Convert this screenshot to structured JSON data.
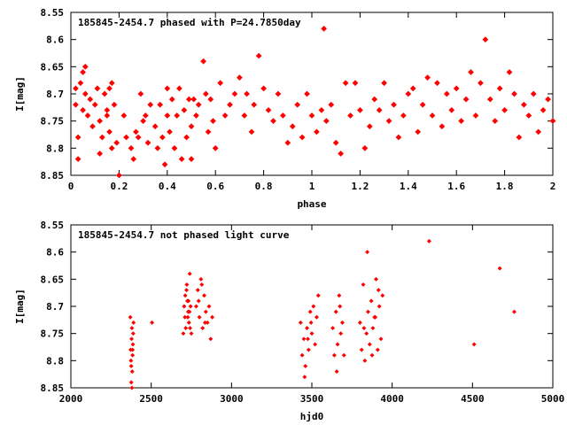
{
  "chart_data": [
    {
      "type": "scatter",
      "title": "185845-2454.7 phased with P=24.7850day",
      "xlabel": "phase",
      "ylabel": "I[mag]",
      "xlim": [
        0,
        2
      ],
      "ylim": [
        8.55,
        8.85
      ],
      "y_inverted": true,
      "xticks": [
        "0",
        "0.2",
        "0.4",
        "0.6",
        "0.8",
        "1",
        "1.2",
        "1.4",
        "1.6",
        "1.8",
        "2"
      ],
      "yticks": [
        "8.55",
        "8.6",
        "8.65",
        "8.7",
        "8.75",
        "8.8",
        "8.85"
      ],
      "grid": false,
      "marker_color": "#ff0000",
      "series": [
        {
          "x": [
            0.02,
            0.02,
            0.03,
            0.03,
            0.04,
            0.05,
            0.05,
            0.06,
            0.06,
            0.07,
            0.08,
            0.09,
            0.1,
            0.11,
            0.12,
            0.12,
            0.13,
            0.14,
            0.15,
            0.15,
            0.16,
            0.16,
            0.17,
            0.17,
            0.18,
            0.19,
            0.2,
            0.22,
            0.23,
            0.25,
            0.26,
            0.27,
            0.28,
            0.29,
            0.3,
            0.31,
            0.32,
            0.33,
            0.35,
            0.36,
            0.37,
            0.38,
            0.39,
            0.4,
            0.4,
            0.41,
            0.42,
            0.43,
            0.44,
            0.45,
            0.46,
            0.47,
            0.48,
            0.49,
            0.5,
            0.5,
            0.51,
            0.52,
            0.53,
            0.55,
            0.56,
            0.57,
            0.58,
            0.59,
            0.6,
            0.62,
            0.64,
            0.66,
            0.68,
            0.7,
            0.72,
            0.73,
            0.75,
            0.76,
            0.78,
            0.8,
            0.82,
            0.84,
            0.86,
            0.88,
            0.9,
            0.92,
            0.94,
            0.96,
            0.98,
            1.0,
            1.02,
            1.04,
            1.05,
            1.06,
            1.08,
            1.1,
            1.12,
            1.14,
            1.16,
            1.18,
            1.2,
            1.22,
            1.24,
            1.26,
            1.28,
            1.3,
            1.32,
            1.34,
            1.36,
            1.38,
            1.4,
            1.42,
            1.44,
            1.46,
            1.48,
            1.5,
            1.52,
            1.54,
            1.56,
            1.58,
            1.6,
            1.62,
            1.64,
            1.66,
            1.68,
            1.7,
            1.72,
            1.74,
            1.76,
            1.78,
            1.8,
            1.82,
            1.84,
            1.86,
            1.88,
            1.9,
            1.92,
            1.94,
            1.96,
            1.98,
            2.0
          ],
          "y": [
            8.72,
            8.69,
            8.78,
            8.82,
            8.68,
            8.66,
            8.73,
            8.65,
            8.7,
            8.74,
            8.71,
            8.76,
            8.72,
            8.69,
            8.81,
            8.75,
            8.78,
            8.7,
            8.74,
            8.73,
            8.77,
            8.69,
            8.8,
            8.68,
            8.72,
            8.79,
            8.85,
            8.74,
            8.78,
            8.8,
            8.82,
            8.77,
            8.78,
            8.7,
            8.75,
            8.74,
            8.79,
            8.72,
            8.76,
            8.8,
            8.72,
            8.78,
            8.83,
            8.74,
            8.69,
            8.77,
            8.71,
            8.8,
            8.74,
            8.69,
            8.82,
            8.73,
            8.78,
            8.71,
            8.82,
            8.76,
            8.71,
            8.74,
            8.72,
            8.64,
            8.7,
            8.77,
            8.71,
            8.75,
            8.8,
            8.68,
            8.74,
            8.72,
            8.7,
            8.67,
            8.74,
            8.7,
            8.77,
            8.72,
            8.63,
            8.69,
            8.73,
            8.75,
            8.7,
            8.74,
            8.79,
            8.76,
            8.72,
            8.78,
            8.7,
            8.74,
            8.77,
            8.73,
            8.58,
            8.75,
            8.72,
            8.79,
            8.81,
            8.68,
            8.74,
            8.68,
            8.73,
            8.8,
            8.76,
            8.71,
            8.73,
            8.68,
            8.75,
            8.72,
            8.78,
            8.74,
            8.7,
            8.69,
            8.77,
            8.72,
            8.67,
            8.74,
            8.68,
            8.76,
            8.7,
            8.73,
            8.69,
            8.75,
            8.71,
            8.66,
            8.74,
            8.68,
            8.6,
            8.71,
            8.75,
            8.69,
            8.73,
            8.66,
            8.7,
            8.78,
            8.72,
            8.74,
            8.7,
            8.77,
            8.73,
            8.71,
            8.75
          ]
        }
      ]
    },
    {
      "type": "scatter",
      "title": "185845-2454.7 not phased light curve",
      "xlabel": "hjd0",
      "ylabel": "I[mag]",
      "xlim": [
        2000,
        5000
      ],
      "ylim": [
        8.55,
        8.85
      ],
      "y_inverted": true,
      "xticks": [
        "2000",
        "2500",
        "3000",
        "3500",
        "4000",
        "4500",
        "5000"
      ],
      "yticks": [
        "8.55",
        "8.6",
        "8.65",
        "8.7",
        "8.75",
        "8.8",
        "8.85"
      ],
      "grid": false,
      "marker_color": "#ff0000",
      "series": [
        {
          "x": [
            2370,
            2372,
            2374,
            2376,
            2378,
            2380,
            2382,
            2384,
            2386,
            2388,
            2390,
            2376,
            2380,
            2384,
            2505,
            2700,
            2705,
            2710,
            2715,
            2720,
            2725,
            2730,
            2735,
            2740,
            2745,
            2750,
            2712,
            2722,
            2728,
            2732,
            2738,
            2742,
            2780,
            2790,
            2800,
            2810,
            2820,
            2830,
            2840,
            2850,
            2860,
            2870,
            2880,
            2795,
            2815,
            2835,
            3430,
            3440,
            3450,
            3460,
            3470,
            3480,
            3490,
            3500,
            3510,
            3520,
            3530,
            3540,
            3455,
            3475,
            3495,
            3630,
            3640,
            3650,
            3660,
            3670,
            3680,
            3690,
            3700,
            3655,
            3675,
            3800,
            3810,
            3820,
            3830,
            3840,
            3850,
            3860,
            3870,
            3880,
            3890,
            3900,
            3910,
            3920,
            3930,
            3940,
            3825,
            3845,
            3875,
            3895,
            3915,
            4230,
            4510,
            4670,
            4760
          ],
          "y": [
            8.72,
            8.78,
            8.8,
            8.84,
            8.76,
            8.74,
            8.82,
            8.79,
            8.77,
            8.75,
            8.73,
            8.81,
            8.85,
            8.78,
            8.73,
            8.75,
            8.7,
            8.72,
            8.74,
            8.67,
            8.69,
            8.71,
            8.73,
            8.64,
            8.7,
            8.75,
            8.68,
            8.66,
            8.72,
            8.69,
            8.71,
            8.74,
            8.7,
            8.67,
            8.72,
            8.65,
            8.74,
            8.68,
            8.71,
            8.73,
            8.7,
            8.76,
            8.72,
            8.69,
            8.66,
            8.73,
            8.73,
            8.79,
            8.76,
            8.81,
            8.74,
            8.78,
            8.71,
            8.75,
            8.7,
            8.77,
            8.72,
            8.68,
            8.83,
            8.76,
            8.73,
            8.74,
            8.79,
            8.71,
            8.77,
            8.68,
            8.75,
            8.73,
            8.79,
            8.82,
            8.7,
            8.73,
            8.78,
            8.66,
            8.8,
            8.75,
            8.71,
            8.77,
            8.69,
            8.74,
            8.72,
            8.65,
            8.78,
            8.7,
            8.76,
            8.68,
            8.74,
            8.6,
            8.79,
            8.72,
            8.67,
            8.58,
            8.77,
            8.63,
            8.71
          ]
        }
      ]
    }
  ]
}
